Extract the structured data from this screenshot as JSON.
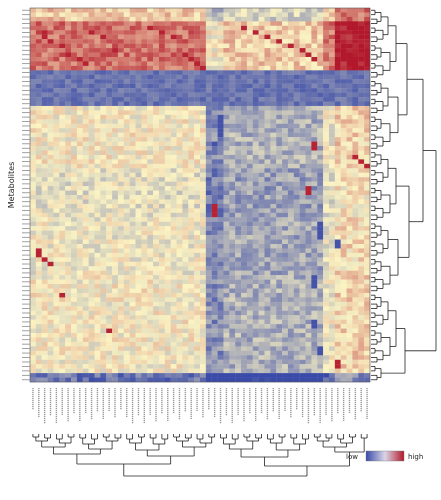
{
  "colors": {
    "low": "#3a4aa8",
    "mid": "#fbf3c2",
    "high": "#b2182b",
    "dendrogram": "#222222",
    "border": "#555555"
  },
  "chart_data": {
    "type": "heatmap",
    "title": "",
    "ylabel": "Metabolites",
    "xlabel": "",
    "n_rows": 84,
    "n_cols": 58,
    "value_range": [
      -1,
      1
    ],
    "legend": {
      "low_label": "low",
      "high_label": "high",
      "position": "bottom-right"
    },
    "row_dendrogram": "right",
    "col_dendrogram": "bottom",
    "notes": "Row and column labels are illegible at this resolution; cell values are approximate readings of the colour scale (-1 = low/blue, 0 = pale yellow, +1 = high/red)."
  }
}
